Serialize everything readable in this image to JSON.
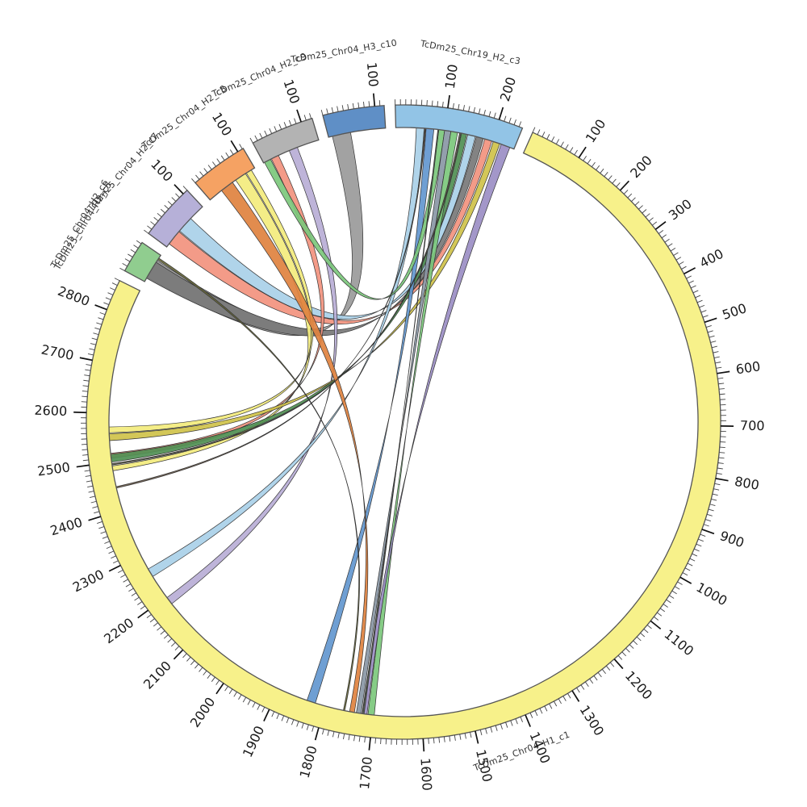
{
  "figure": {
    "background": "#ffffff",
    "kind": "circos-synteny-plot"
  },
  "chart_data": {
    "type": "chord",
    "layout": {
      "order": [
        "c3",
        "c1",
        "cg",
        "c7",
        "c8",
        "c9",
        "c10"
      ],
      "start_deg": -1.5,
      "gap_deg": 2.0
    },
    "blocks": {
      "c3": {
        "label": "TcDm25_Chr19_H2_c3",
        "color": "#92c4e6",
        "length": 247,
        "major_tick_labels": [
          100,
          200
        ]
      },
      "c1": {
        "label": "TcDm25_Chr04_H1_c1",
        "color": "#f7f18a",
        "length": 2860,
        "major_tick_labels": [
          100,
          200,
          300,
          400,
          500,
          600,
          700,
          800,
          900,
          1000,
          1100,
          1200,
          1300,
          1400,
          1500,
          1600,
          1700,
          1800,
          1900,
          2000,
          2100,
          2200,
          2300,
          2400,
          2500,
          2600,
          2700,
          2800
        ]
      },
      "cg": {
        "label": "TcDm25_Chr04_H2_c5",
        "label_overlap": "TcDm25_Chr04_H2_c6",
        "color": "#90cd8f",
        "length": 63,
        "major_tick_labels": []
      },
      "c7": {
        "label": "TcDm25_Chr04_H2_c7",
        "color": "#b6b0d8",
        "length": 110,
        "major_tick_labels": [
          100
        ]
      },
      "c8": {
        "label": "TcDm25_Chr04_H2_c8",
        "color": "#f5a263",
        "length": 112,
        "major_tick_labels": [
          100
        ]
      },
      "c9": {
        "label": "TcDm25_Chr04_H2_c9",
        "color": "#b3b3b3",
        "length": 122,
        "major_tick_labels": [
          100
        ]
      },
      "c10": {
        "label": "TcDm25_Chr04_H3_c10",
        "color": "#5f8fc6",
        "length": 118,
        "major_tick_labels": [
          100
        ]
      }
    },
    "ticks": {
      "minor_step": 10,
      "major_step": 100
    },
    "ribbons": [
      {
        "from": [
          "c10",
          8,
          46
        ],
        "to": [
          "cg",
          10,
          50
        ],
        "color": "#9a9a9a"
      },
      {
        "from": [
          "c3",
          166,
          181
        ],
        "to": [
          "cg",
          8,
          46
        ],
        "color": "#787878"
      },
      {
        "from": [
          "c3",
          148,
          164
        ],
        "to": [
          "c7",
          42,
          76
        ],
        "color": "#a9d0e8"
      },
      {
        "from": [
          "c3",
          184,
          199
        ],
        "to": [
          "c7",
          8,
          40
        ],
        "color": "#f2937e"
      },
      {
        "from": [
          "c9",
          58,
          76
        ],
        "to": [
          "c1",
          2182,
          2198
        ],
        "color": "#b9aed6"
      },
      {
        "from": [
          "c9",
          18,
          34
        ],
        "to": [
          "c1",
          2508,
          2518
        ],
        "color": "#f2937e"
      },
      {
        "from": [
          "c8",
          66,
          90
        ],
        "to": [
          "c1",
          2482,
          2492
        ],
        "color": "#f3ec7d"
      },
      {
        "from": [
          "c8",
          92,
          104
        ],
        "to": [
          "c1",
          2560,
          2572
        ],
        "color": "#f3ec7d"
      },
      {
        "from": [
          "c3",
          135,
          146
        ],
        "to": [
          "c1",
          2500,
          2516
        ],
        "color": "#4f8f52"
      },
      {
        "from": [
          "c3",
          202,
          216
        ],
        "to": [
          "c1",
          2544,
          2558
        ],
        "color": "#cfc24a"
      },
      {
        "from": [
          "c3",
          42,
          58
        ],
        "to": [
          "c1",
          2250,
          2268
        ],
        "color": "#a9d0e8"
      },
      {
        "from": [
          "c3",
          62,
          78
        ],
        "to": [
          "c1",
          1820,
          1838
        ],
        "color": "#6397cf"
      },
      {
        "from": [
          "c3",
          88,
          100
        ],
        "to": [
          "c9",
          2,
          16
        ],
        "color": "#7cc87c"
      },
      {
        "from": [
          "c3",
          100,
          113
        ],
        "to": [
          "c1",
          1724,
          1734
        ],
        "color": "#8a97a5"
      },
      {
        "from": [
          "c3",
          113,
          127
        ],
        "to": [
          "c1",
          1697,
          1710
        ],
        "color": "#7cc87c"
      },
      {
        "from": [
          "c3",
          219,
          238
        ],
        "to": [
          "c1",
          1712,
          1722
        ],
        "color": "#9b8ec4"
      },
      {
        "from": [
          "c8",
          30,
          58
        ],
        "to": [
          "c1",
          1738,
          1748
        ],
        "color": "#e0823f"
      },
      {
        "from": [
          "cg",
          52,
          56
        ],
        "to": [
          "c1",
          1758,
          1761
        ],
        "color": "#6a6a3a"
      },
      {
        "from": [
          "c1",
          2494,
          2497
        ],
        "to": [
          "c3",
          131,
          134
        ],
        "color": "#5a5a46"
      },
      {
        "from": [
          "c1",
          2446,
          2449
        ],
        "to": [
          "c3",
          59,
          61
        ],
        "color": "#6a5a4a"
      },
      {
        "from": [
          "c1",
          1718,
          1721
        ],
        "to": [
          "c3",
          86,
          88
        ],
        "color": "#55624f"
      }
    ]
  }
}
